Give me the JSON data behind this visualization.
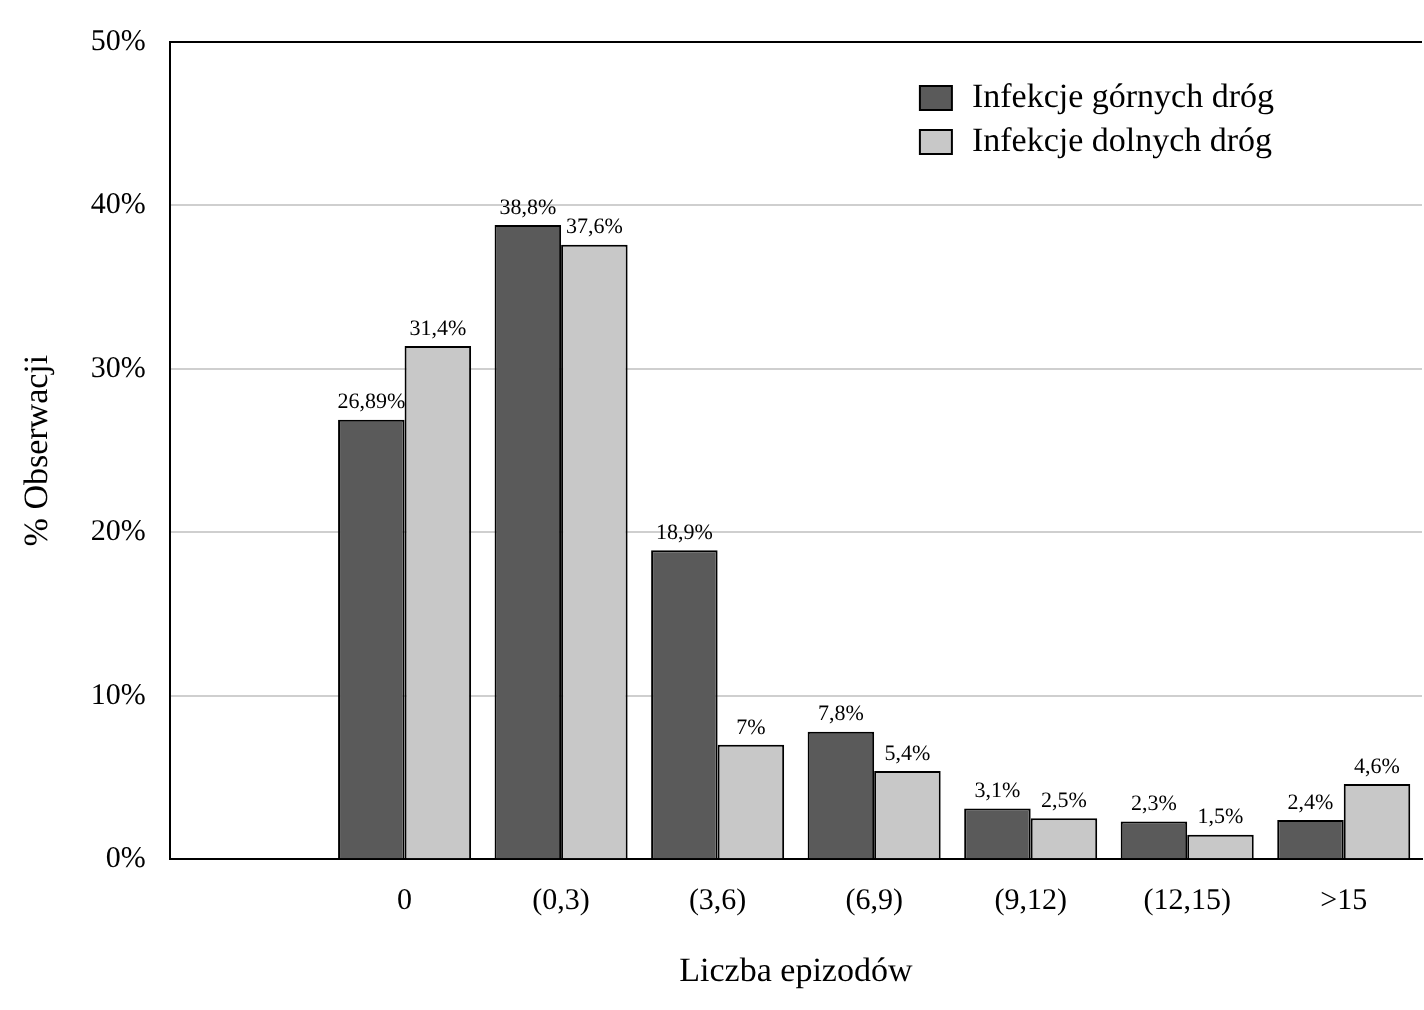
{
  "chart_data": {
    "type": "bar",
    "xlabel": "Liczba epizodów",
    "ylabel": "% Obserwacji",
    "categories": [
      null,
      "0",
      "(0,3)",
      "(3,6)",
      "(6,9)",
      "(9,12)",
      "(12,15)",
      ">15"
    ],
    "series": [
      {
        "name": "Infekcje górnych dróg",
        "color": "#5a5a5a",
        "values": [
          null,
          26.89,
          38.8,
          18.9,
          7.8,
          3.1,
          2.3,
          2.4
        ],
        "value_labels": [
          null,
          "26,89%",
          "38,8%",
          "18,9%",
          "7,8%",
          "3,1%",
          "2,3%",
          "2,4%"
        ]
      },
      {
        "name": "Infekcje dolnych dróg",
        "color": "#c8c8c8",
        "values": [
          null,
          31.4,
          37.6,
          7,
          5.4,
          2.5,
          1.5,
          4.6
        ],
        "value_labels": [
          null,
          "31,4%",
          "37,6%",
          "7%",
          "5,4%",
          "2,5%",
          "1,5%",
          "4,6%"
        ]
      }
    ],
    "ylim": [
      0,
      50
    ],
    "yticks": [
      {
        "value": 0,
        "label": "0%"
      },
      {
        "value": 10,
        "label": "10%"
      },
      {
        "value": 20,
        "label": "20%"
      },
      {
        "value": 30,
        "label": "30%"
      },
      {
        "value": 40,
        "label": "40%"
      },
      {
        "value": 50,
        "label": "50%"
      }
    ],
    "grid": "y",
    "legend": "top right"
  }
}
